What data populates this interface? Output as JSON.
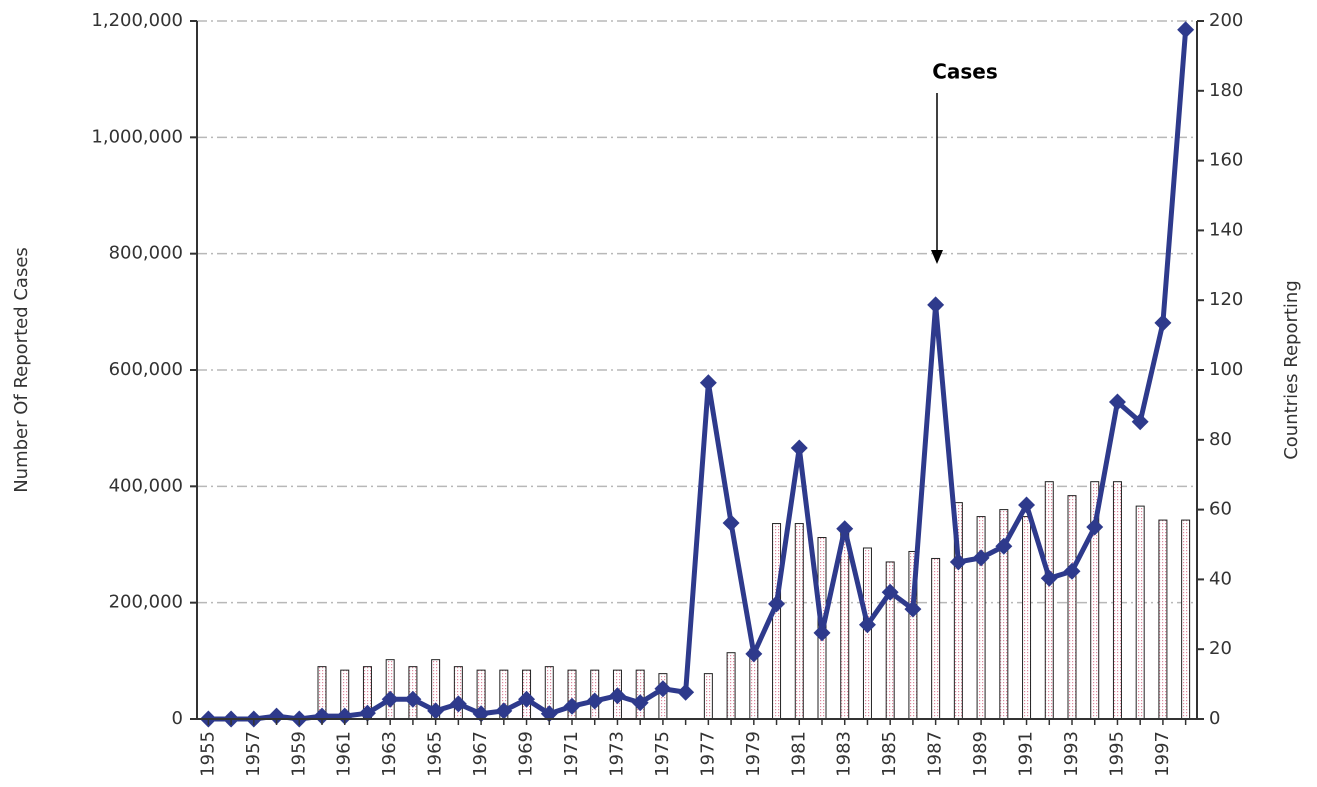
{
  "chart_data": {
    "type": "bar-line",
    "annotation": "Cases",
    "y_label": "Number Of Reported Cases",
    "y2_label": "Countries Reporting",
    "categories": [
      "1955",
      null,
      "1957",
      null,
      "1959",
      null,
      "1961",
      null,
      "1963",
      null,
      "1965",
      null,
      "1967",
      null,
      "1969",
      null,
      "1971",
      null,
      "1973",
      null,
      "1975",
      null,
      "1977",
      null,
      "1979",
      null,
      "1981",
      null,
      "1983",
      null,
      "1985",
      null,
      "1987",
      null,
      "1989",
      null,
      "1991",
      null,
      "1993",
      null,
      "1995",
      null,
      "1997",
      null
    ],
    "series": [
      {
        "type": "bar",
        "axis": "y2",
        "color": "#f2a7b8",
        "values": [
          0,
          0,
          0,
          0,
          0,
          15,
          14,
          15,
          17,
          15,
          17,
          15,
          14,
          14,
          14,
          15,
          14,
          14,
          14,
          14,
          13,
          0,
          13,
          19,
          20,
          56,
          56,
          52,
          54,
          49,
          45,
          48,
          46,
          62,
          58,
          60,
          58,
          68,
          64,
          68,
          68,
          61,
          57,
          57
        ]
      },
      {
        "type": "line",
        "axis": "y",
        "color": "#2e3a8c",
        "values": [
          0,
          0,
          0,
          5000,
          0,
          5000,
          5000,
          10000,
          34000,
          34000,
          14000,
          26000,
          9000,
          14000,
          34000,
          9000,
          22000,
          31000,
          40000,
          28000,
          52000,
          46000,
          578000,
          337000,
          112000,
          198000,
          466000,
          148000,
          327000,
          162000,
          218000,
          189000,
          712000,
          270000,
          277000,
          297000,
          368000,
          242000,
          254000,
          330000,
          545000,
          511000,
          681000,
          1185000
        ]
      }
    ],
    "ylim": [
      0,
      1200000
    ],
    "yticks": [
      0,
      {
        "value": 200000,
        "label": "200,000"
      },
      {
        "value": 400000,
        "label": "400,000"
      },
      {
        "value": 600000,
        "label": "600,000"
      },
      {
        "value": 800000,
        "label": "800,000"
      },
      {
        "value": 1000000,
        "label": "1,000,000"
      },
      {
        "value": 1200000,
        "label": "1,200,000"
      }
    ],
    "y2lim": [
      0,
      200
    ],
    "y2ticks": [
      0,
      20,
      40,
      60,
      80,
      100,
      120,
      140,
      160,
      180,
      200
    ],
    "grid": true
  }
}
